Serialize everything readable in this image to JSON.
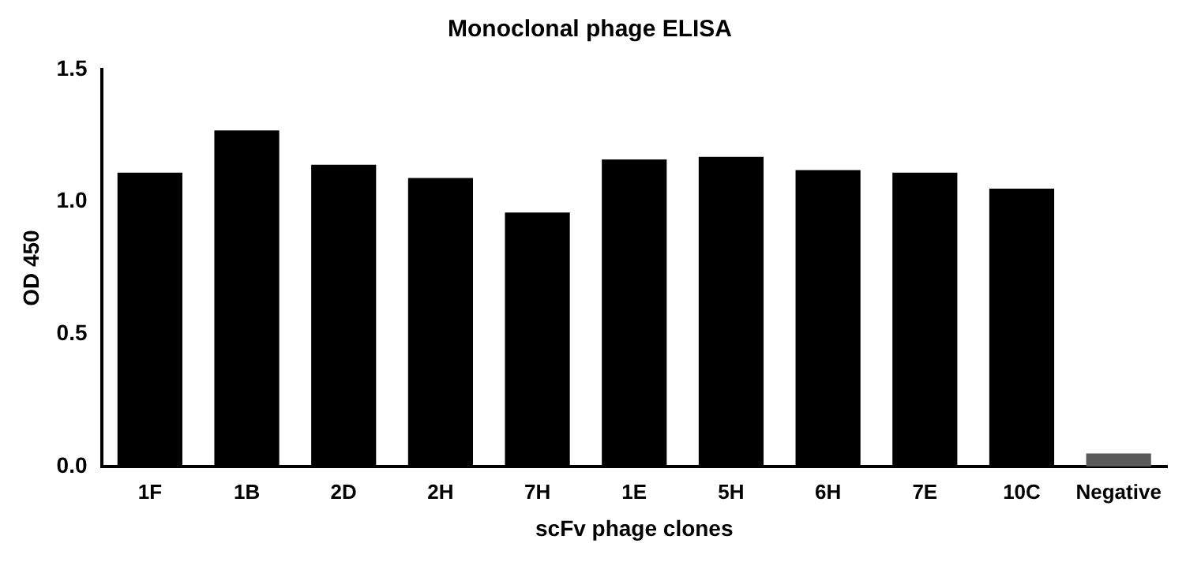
{
  "chart_data": {
    "type": "bar",
    "title": "Monoclonal phage ELISA",
    "xlabel": "scFv phage clones",
    "ylabel": "OD 450",
    "categories": [
      "1F",
      "1B",
      "2D",
      "2H",
      "7H",
      "1E",
      "5H",
      "6H",
      "7E",
      "10C",
      "Negative"
    ],
    "values": [
      1.11,
      1.27,
      1.14,
      1.09,
      0.96,
      1.16,
      1.17,
      1.12,
      1.11,
      1.05,
      0.05
    ],
    "colors": [
      "#000000",
      "#000000",
      "#000000",
      "#000000",
      "#000000",
      "#000000",
      "#000000",
      "#000000",
      "#000000",
      "#000000",
      "#5a5a5a"
    ],
    "ylim": [
      0,
      1.5
    ],
    "yticks": [
      {
        "value": 0,
        "label": "0.0"
      },
      0.5,
      {
        "value": 1,
        "label": "1.0"
      },
      1.5
    ],
    "grid": false,
    "legend": false
  }
}
